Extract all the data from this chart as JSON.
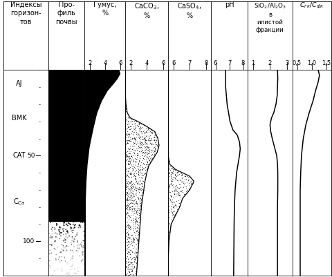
{
  "depth_max": 120,
  "hz_positions": {
    "AJ": 8,
    "BMK": 28,
    "CAT": 50,
    "CCa": 77
  },
  "depth_ticks": [
    50,
    100
  ],
  "humus_profile": {
    "depths": [
      0,
      2,
      5,
      8,
      12,
      18,
      25,
      35,
      45,
      55,
      65,
      75,
      85,
      95,
      110,
      120
    ],
    "values": [
      5.8,
      6.0,
      5.5,
      4.8,
      3.8,
      2.8,
      2.0,
      1.3,
      0.7,
      0.35,
      0.15,
      0.05,
      0.0,
      0.0,
      0.0,
      0.0
    ]
  },
  "caco3_profile": {
    "depths": [
      0,
      5,
      10,
      15,
      20,
      25,
      28,
      30,
      33,
      36,
      40,
      44,
      48,
      52,
      56,
      60,
      65,
      70,
      75,
      80,
      90,
      100,
      110,
      120
    ],
    "values": [
      0.0,
      0.0,
      0.0,
      0.0,
      0.1,
      0.3,
      0.8,
      2.0,
      3.5,
      4.8,
      5.3,
      5.5,
      5.2,
      4.5,
      3.8,
      3.5,
      3.2,
      3.0,
      2.8,
      2.6,
      2.4,
      2.2,
      2.0,
      1.8
    ]
  },
  "caso4_profile": {
    "depths": [
      0,
      30,
      45,
      50,
      55,
      58,
      62,
      65,
      70,
      75,
      80,
      85,
      90,
      100,
      110,
      120
    ],
    "values": [
      6.0,
      6.0,
      6.0,
      6.0,
      6.1,
      6.5,
      7.5,
      7.8,
      7.5,
      7.0,
      6.8,
      6.5,
      6.2,
      6.05,
      6.0,
      6.0
    ]
  },
  "ph_profile": {
    "depths": [
      0,
      5,
      10,
      15,
      20,
      25,
      30,
      35,
      38,
      42,
      46,
      50,
      55,
      60,
      65,
      70,
      80,
      90,
      100,
      110,
      120
    ],
    "values": [
      7.0,
      7.0,
      7.0,
      7.05,
      7.1,
      7.2,
      7.3,
      7.5,
      7.8,
      7.95,
      8.0,
      7.95,
      7.85,
      7.75,
      7.7,
      7.65,
      7.6,
      7.58,
      7.57,
      7.56,
      7.55
    ]
  },
  "sio2al2o3_profile": {
    "depths": [
      0,
      5,
      10,
      15,
      20,
      25,
      28,
      32,
      36,
      40,
      45,
      50,
      55,
      60,
      70,
      80,
      90,
      100,
      110,
      120
    ],
    "values": [
      2.5,
      2.52,
      2.5,
      2.48,
      2.4,
      2.25,
      2.1,
      2.0,
      2.05,
      2.15,
      2.3,
      2.45,
      2.5,
      2.52,
      2.52,
      2.5,
      2.5,
      2.5,
      2.5,
      2.5
    ]
  },
  "cgk_cfk_profile": {
    "depths": [
      0,
      3,
      7,
      12,
      18,
      25,
      32,
      40,
      50,
      60,
      70,
      80,
      90,
      100,
      110,
      120
    ],
    "values": [
      1.3,
      1.35,
      1.3,
      1.2,
      1.1,
      0.95,
      0.82,
      0.72,
      0.65,
      0.62,
      0.6,
      0.6,
      0.6,
      0.6,
      0.6,
      0.6
    ]
  },
  "header_tick_labels": {
    "humus": [
      "2",
      "4",
      "6"
    ],
    "caco3": [
      "2",
      "4",
      "6"
    ],
    "caso4": [
      "6",
      "7",
      "8"
    ],
    "ph": [
      "6",
      "7",
      "8"
    ],
    "sio2": [
      "1",
      "2",
      "3"
    ],
    "cgk": [
      "0,5",
      "1,0",
      "1,5"
    ]
  }
}
